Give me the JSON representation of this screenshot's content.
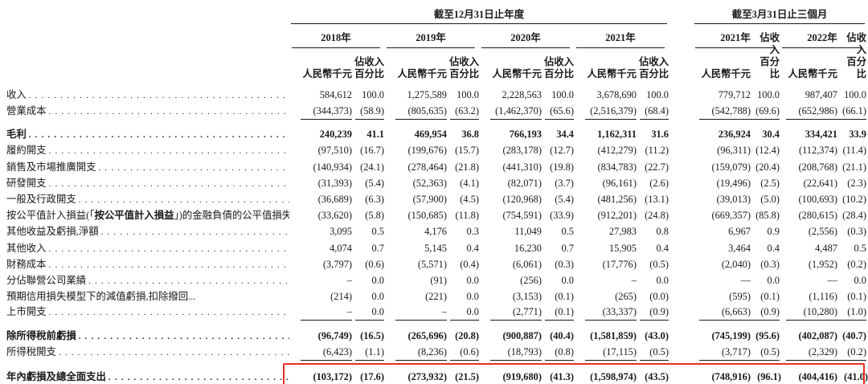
{
  "table": {
    "highlight_color": "#e5301f",
    "period_groups": [
      {
        "title": "截至12月31日止年度",
        "years": [
          "2018年",
          "2019年",
          "2020年",
          "2021年"
        ]
      },
      {
        "title": "截至3月31日止三個月",
        "years": [
          "2021年",
          "2022年"
        ]
      }
    ],
    "col_headers": {
      "amount": "人民幣千元",
      "percent": "佔收入\n百分比"
    },
    "rows": [
      {
        "label": "收入",
        "values": [
          "584,612",
          "100.0",
          "1,275,589",
          "100.0",
          "2,228,563",
          "100.0",
          "3,678,690",
          "100.0",
          "779,712",
          "100.0",
          "987,407",
          "100.0"
        ]
      },
      {
        "label": "營業成本",
        "rule_below": true,
        "values": [
          "(344,373)",
          "(58.9)",
          "(805,635)",
          "(63.2)",
          "(1,462,370)",
          "(65.6)",
          "(2,516,379)",
          "(68.4)",
          "(542,788)",
          "(69.6)",
          "(652,986)",
          "(66.1)"
        ]
      },
      {
        "label": "毛利",
        "bold": true,
        "values": [
          "240,239",
          "41.1",
          "469,954",
          "36.8",
          "766,193",
          "34.4",
          "1,162,311",
          "31.6",
          "236,924",
          "30.4",
          "334,421",
          "33.9"
        ]
      },
      {
        "label": "履約開支",
        "values": [
          "(97,510)",
          "(16.7)",
          "(199,676)",
          "(15.7)",
          "(283,178)",
          "(12.7)",
          "(412,279)",
          "(11.2)",
          "(96,311)",
          "(12.4)",
          "(112,374)",
          "(11.4)"
        ]
      },
      {
        "label": "銷售及市場推廣開支",
        "values": [
          "(140,934)",
          "(24.1)",
          "(278,464)",
          "(21.8)",
          "(441,310)",
          "(19.8)",
          "(834,783)",
          "(22.7)",
          "(159,079)",
          "(20.4)",
          "(208,768)",
          "(21.1)"
        ]
      },
      {
        "label": "研發開支",
        "values": [
          "(31,393)",
          "(5.4)",
          "(52,363)",
          "(4.1)",
          "(82,071)",
          "(3.7)",
          "(96,161)",
          "(2.6)",
          "(19,496)",
          "(2.5)",
          "(22,641)",
          "(2.3)"
        ]
      },
      {
        "label": "一般及行政開支",
        "values": [
          "(36,689)",
          "(6.3)",
          "(57,900)",
          "(4.5)",
          "(120,968)",
          "(5.4)",
          "(481,256)",
          "(13.1)",
          "(39,013)",
          "(5.0)",
          "(100,693)",
          "(10.2)"
        ]
      },
      {
        "label": "按公平值計入損益(「按公平值計入損益」)的金融負債的公平值損失",
        "label_parts": [
          {
            "text": "按公平值計入損益(「",
            "bold": false
          },
          {
            "text": "按公平值計入損益",
            "bold": true
          },
          {
            "text": "」)的金融負債的公平值損失",
            "bold": false
          }
        ],
        "values": [
          "(33,620)",
          "(5.8)",
          "(150,685)",
          "(11.8)",
          "(754,591)",
          "(33.9)",
          "(912,201)",
          "(24.8)",
          "(669,357)",
          "(85.8)",
          "(280,615)",
          "(28.4)"
        ]
      },
      {
        "label": "其他收益及虧損,淨額",
        "values": [
          "3,095",
          "0.5",
          "4,176",
          "0.3",
          "11,049",
          "0.5",
          "27,983",
          "0.8",
          "6,967",
          "0.9",
          "(2,556)",
          "(0.3)"
        ]
      },
      {
        "label": "其他收入",
        "values": [
          "4,074",
          "0.7",
          "5,145",
          "0.4",
          "16,230",
          "0.7",
          "15,905",
          "0.4",
          "3,464",
          "0.4",
          "4,487",
          "0.5"
        ]
      },
      {
        "label": "財務成本",
        "values": [
          "(3,797)",
          "(0.6)",
          "(5,571)",
          "(0.4)",
          "(6,061)",
          "(0.3)",
          "(17,776)",
          "(0.5)",
          "(2,040)",
          "(0.3)",
          "(1,952)",
          "(0.2)"
        ]
      },
      {
        "label": "分佔聯營公司業績",
        "values": [
          "–",
          "0.0",
          "(91)",
          "0.0",
          "(256)",
          "0.0",
          "–",
          "0.0",
          "—",
          "0.0",
          "—",
          "0.0"
        ]
      },
      {
        "label": "預期信用損失模型下的減值虧損,扣除撥回...",
        "no_leader": true,
        "values": [
          "(214)",
          "0.0",
          "(221)",
          "0.0",
          "(3,153)",
          "(0.1)",
          "(265)",
          "(0.0)",
          "(595)",
          "(0.1)",
          "(1,116)",
          "(0.1)"
        ]
      },
      {
        "label": "上市開支",
        "rule_below": true,
        "values": [
          "–",
          "0.0",
          "–",
          "0.0",
          "(2,771)",
          "(0.1)",
          "(33,337)",
          "(0.9)",
          "(6,663)",
          "(0.9)",
          "(10,280)",
          "(1.0)"
        ]
      },
      {
        "label": "除所得稅前虧損",
        "bold": true,
        "values": [
          "(96,749)",
          "(16.5)",
          "(265,696)",
          "(20.8)",
          "(900,887)",
          "(40.4)",
          "(1,581,859)",
          "(43.0)",
          "(745,199)",
          "(95.6)",
          "(402,087)",
          "(40.7)"
        ]
      },
      {
        "label": "所得稅開支",
        "rule_below": true,
        "values": [
          "(6,423)",
          "(1.1)",
          "(8,236)",
          "(0.6)",
          "(18,793)",
          "(0.8)",
          "(17,115)",
          "(0.5)",
          "(3,717)",
          "(0.5)",
          "(2,329)",
          "(0.2)"
        ]
      },
      {
        "label": "年內虧損及總全面支出",
        "bold": true,
        "highlight": true,
        "double_rule": true,
        "values": [
          "(103,172)",
          "(17.6)",
          "(273,932)",
          "(21.5)",
          "(919,680)",
          "(41.3)",
          "(1,598,974)",
          "(43.5)",
          "(748,916)",
          "(96.1)",
          "(404,416)",
          "(41.0)"
        ]
      }
    ]
  }
}
